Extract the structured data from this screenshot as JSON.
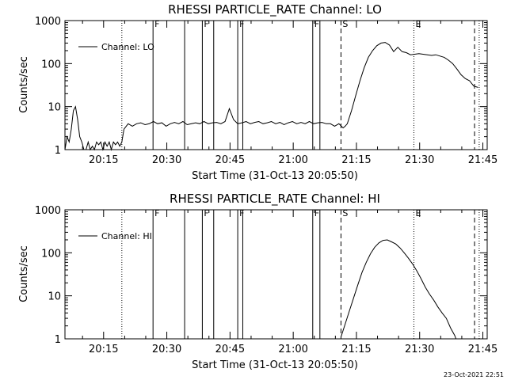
{
  "figure": {
    "timestamp": "23-Oct-2021 22:51"
  },
  "chart_data": [
    {
      "type": "line",
      "title": "RHESSI PARTICLE_RATE Channel: LO",
      "xlabel": "Start Time (31-Oct-13 20:05:50)",
      "ylabel": "Counts/sec",
      "yscale": "log",
      "ylim": [
        1,
        1000
      ],
      "xlim_minutes": [
        0,
        100.2
      ],
      "x_ticks": [
        "20:15",
        "20:30",
        "20:45",
        "21:00",
        "21:15",
        "21:30",
        "21:45"
      ],
      "x_tick_minutes": [
        9.17,
        24.17,
        39.17,
        54.17,
        69.17,
        84.17,
        99.17
      ],
      "y_ticks": [
        "1",
        "10",
        "100",
        "1000"
      ],
      "legend": {
        "entries": [
          "Channel: LO"
        ],
        "position": "top-left"
      },
      "markers": {
        "dotted_minutes": [
          13.5,
          82.8,
          98.3
        ],
        "solid_minutes": [
          20.9,
          28.4,
          32.6,
          35.3,
          41.0,
          42.2,
          58.8,
          60.5
        ],
        "dashed_minutes": [
          65.5,
          97.2
        ],
        "labels": [
          {
            "text": "F",
            "minute": 20.9
          },
          {
            "text": "F",
            "minute": 32.6
          },
          {
            "text": "F",
            "minute": 41.0
          },
          {
            "text": "F",
            "minute": 58.8
          },
          {
            "text": "S",
            "minute": 65.5
          },
          {
            "text": "E",
            "minute": 82.8
          }
        ]
      },
      "series": [
        {
          "name": "Channel: LO",
          "x": [
            0,
            0.5,
            1.0,
            1.5,
            2.0,
            2.5,
            3.0,
            3.5,
            4.0,
            4.5,
            5.0,
            5.5,
            6.0,
            6.5,
            7.0,
            7.5,
            8.0,
            8.5,
            9.0,
            9.5,
            10.0,
            10.5,
            11.0,
            11.5,
            12.0,
            12.5,
            13.0,
            13.5,
            14.0,
            15.0,
            16.0,
            17.0,
            18.0,
            19.0,
            20.0,
            21.0,
            22.0,
            23.0,
            24.0,
            25.0,
            26.0,
            27.0,
            28.0,
            29.0,
            30.0,
            31.0,
            32.0,
            33.0,
            34.0,
            35.0,
            36.0,
            37.0,
            38.0,
            39.0,
            40.0,
            41.0,
            42.0,
            43.0,
            44.0,
            45.0,
            46.0,
            47.0,
            48.0,
            49.0,
            50.0,
            51.0,
            52.0,
            53.0,
            54.0,
            55.0,
            56.0,
            57.0,
            58.0,
            59.0,
            60.0,
            61.0,
            62.0,
            63.0,
            64.0,
            65.0,
            66.0,
            66.5,
            67.0,
            68.0,
            69.0,
            70.0,
            71.0,
            72.0,
            73.0,
            74.0,
            75.0,
            76.0,
            77.0,
            78.0,
            79.0,
            80.0,
            81.0,
            82.0,
            83.0,
            84.0,
            85.0,
            86.0,
            87.0,
            88.0,
            89.0,
            90.0,
            91.0,
            92.0,
            93.0,
            94.0,
            95.0,
            96.0,
            97.0,
            98.0
          ],
          "y": [
            1,
            2,
            1.5,
            3,
            8,
            10,
            5,
            2,
            1.5,
            1,
            1,
            1.5,
            1,
            1.2,
            1,
            1.5,
            1.3,
            1.5,
            1,
            1.5,
            1.2,
            1.5,
            1,
            1.5,
            1.3,
            1.5,
            1.2,
            1.5,
            3,
            4,
            3.5,
            4,
            4.2,
            3.8,
            4,
            4.5,
            4,
            4.2,
            3.5,
            4,
            4.3,
            4,
            4.5,
            3.8,
            4,
            4.2,
            4,
            4.5,
            4,
            4.2,
            4.3,
            4,
            4.5,
            9,
            5,
            4,
            4.2,
            4.5,
            4,
            4.3,
            4.5,
            4,
            4.2,
            4.5,
            4,
            4.3,
            3.8,
            4.2,
            4.5,
            4,
            4.3,
            4,
            4.5,
            4,
            4.2,
            4.3,
            4,
            4,
            3.5,
            4,
            3.2,
            3.5,
            4,
            8,
            18,
            40,
            80,
            140,
            200,
            260,
            300,
            310,
            270,
            190,
            240,
            190,
            180,
            160,
            165,
            170,
            165,
            160,
            155,
            160,
            150,
            140,
            120,
            100,
            75,
            55,
            45,
            40,
            30,
            28
          ]
        }
      ]
    },
    {
      "type": "line",
      "title": "RHESSI PARTICLE_RATE Channel: HI",
      "xlabel": "Start Time (31-Oct-13 20:05:50)",
      "ylabel": "Counts/sec",
      "yscale": "log",
      "ylim": [
        1,
        1000
      ],
      "xlim_minutes": [
        0,
        100.2
      ],
      "x_ticks": [
        "20:15",
        "20:30",
        "20:45",
        "21:00",
        "21:15",
        "21:30",
        "21:45"
      ],
      "x_tick_minutes": [
        9.17,
        24.17,
        39.17,
        54.17,
        69.17,
        84.17,
        99.17
      ],
      "y_ticks": [
        "1",
        "10",
        "100",
        "1000"
      ],
      "legend": {
        "entries": [
          "Channel: HI"
        ],
        "position": "top-left"
      },
      "markers": {
        "dotted_minutes": [
          13.5,
          82.8,
          98.3
        ],
        "solid_minutes": [
          20.9,
          28.4,
          32.6,
          35.3,
          41.0,
          42.2,
          58.8,
          60.5
        ],
        "dashed_minutes": [
          65.5,
          97.2
        ],
        "labels": [
          {
            "text": "F",
            "minute": 20.9
          },
          {
            "text": "F",
            "minute": 32.6
          },
          {
            "text": "F",
            "minute": 41.0
          },
          {
            "text": "F",
            "minute": 58.8
          },
          {
            "text": "S",
            "minute": 65.5
          },
          {
            "text": "E",
            "minute": 82.8
          }
        ]
      },
      "series": [
        {
          "name": "Channel: HI",
          "x": [
            65.5,
            66.5,
            67.5,
            68.5,
            69.5,
            70.5,
            71.5,
            72.5,
            73.5,
            74.5,
            75.5,
            76.5,
            77.5,
            78.5,
            79.5,
            80.5,
            81.5,
            82.5,
            83.5,
            84.5,
            85.5,
            86.5,
            87.5,
            88.5,
            89.5,
            90.5,
            91.5,
            92.5,
            92.8
          ],
          "y": [
            1.1,
            2.2,
            4.5,
            9,
            18,
            35,
            60,
            95,
            135,
            170,
            195,
            200,
            180,
            160,
            130,
            100,
            75,
            55,
            38,
            25,
            16,
            11,
            8,
            5.5,
            4,
            3,
            1.8,
            1.2,
            1
          ]
        }
      ]
    }
  ]
}
